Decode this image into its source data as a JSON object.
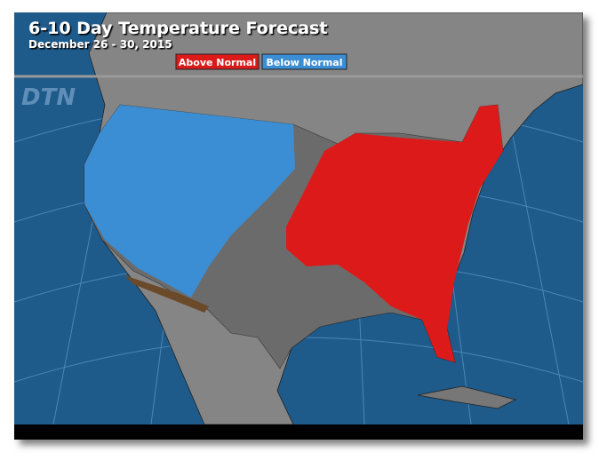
{
  "header": {
    "title": "6-10 Day Temperature Forecast",
    "subtitle": "December 26 - 30, 2015"
  },
  "legend": [
    {
      "label": "Above Normal",
      "color": "#dd1a1a"
    },
    {
      "label": "Below Normal",
      "color": "#3b8ed3"
    }
  ],
  "logo": "DTN"
}
